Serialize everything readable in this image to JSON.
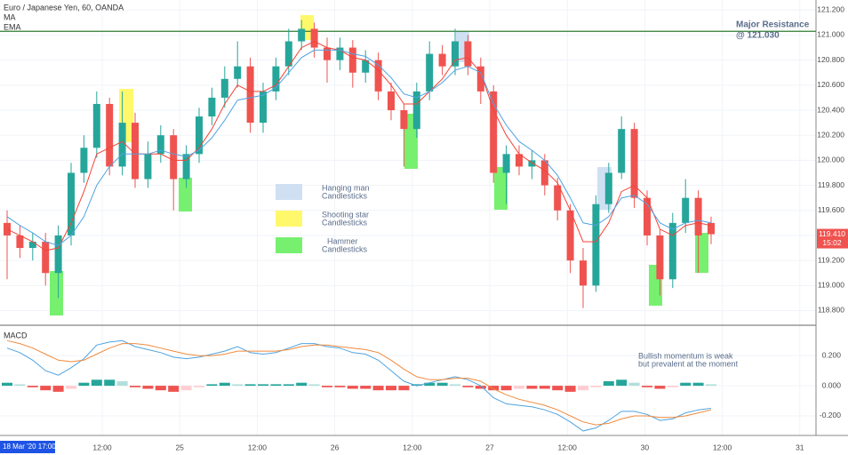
{
  "chart_data": {
    "type": "candlestick",
    "title": "Euro / Japanese Yen, 60, OANDA",
    "ylim": [
      118.69,
      121.28
    ],
    "yticks": [
      {
        "value": 121.2,
        "label": "121.200"
      },
      {
        "value": 121.0,
        "label": "121.000"
      },
      {
        "value": 120.8,
        "label": "120.800"
      },
      {
        "value": 120.6,
        "label": "120.600"
      },
      {
        "value": 120.4,
        "label": "120.400"
      },
      {
        "value": 120.2,
        "label": "120.200"
      },
      {
        "value": 120.0,
        "label": "120.000"
      },
      {
        "value": 119.8,
        "label": "119.800"
      },
      {
        "value": 119.6,
        "label": "119.600"
      },
      {
        "value": 119.4,
        "label": "119.400"
      },
      {
        "value": 119.2,
        "label": "119.200"
      },
      {
        "value": 119.0,
        "label": "119.000"
      },
      {
        "value": 118.8,
        "label": "118.800"
      }
    ],
    "grid": true,
    "up_color": "#26a69a",
    "down_color": "#ef5350",
    "open": [
      119.5,
      119.4,
      119.3,
      119.35,
      119.1,
      119.4,
      119.9,
      120.1,
      120.45,
      119.95,
      120.3,
      119.85,
      120.05,
      120.2,
      119.85,
      120.05,
      120.35,
      120.5,
      120.65,
      120.75,
      120.3,
      120.55,
      120.75,
      120.95,
      121.05,
      120.9,
      120.8,
      120.9,
      120.7,
      120.8,
      120.55,
      120.4,
      120.25,
      120.55,
      120.85,
      120.75,
      120.95,
      120.75,
      120.55,
      119.9,
      120.05,
      119.95,
      120.0,
      119.8,
      119.6,
      119.2,
      119.0,
      119.65,
      119.9,
      120.25,
      119.7,
      119.4,
      119.05,
      119.5,
      119.7,
      119.5
    ],
    "high": [
      119.6,
      119.48,
      119.42,
      119.42,
      119.48,
      119.98,
      120.2,
      120.55,
      120.5,
      120.55,
      120.38,
      120.15,
      120.28,
      120.25,
      120.12,
      120.42,
      120.58,
      120.75,
      120.95,
      120.82,
      120.62,
      120.82,
      121.05,
      121.12,
      121.1,
      120.98,
      120.98,
      120.96,
      120.88,
      120.86,
      120.62,
      120.45,
      120.62,
      120.95,
      120.92,
      121.05,
      121.0,
      120.82,
      120.6,
      120.12,
      120.12,
      120.08,
      120.05,
      119.86,
      119.65,
      119.3,
      119.72,
      119.98,
      120.35,
      120.3,
      119.76,
      119.45,
      119.58,
      119.85,
      119.76,
      119.55
    ],
    "low": [
      119.05,
      119.22,
      119.2,
      119.0,
      118.9,
      119.32,
      119.82,
      120.02,
      119.88,
      119.88,
      119.78,
      119.78,
      119.98,
      119.6,
      119.78,
      119.98,
      120.28,
      120.42,
      120.58,
      120.22,
      120.22,
      120.48,
      120.68,
      120.88,
      120.82,
      120.62,
      120.72,
      120.58,
      120.62,
      120.48,
      120.32,
      119.95,
      120.18,
      120.48,
      120.68,
      120.68,
      120.68,
      120.45,
      119.82,
      119.65,
      119.88,
      119.85,
      119.72,
      119.52,
      119.1,
      118.82,
      118.95,
      119.58,
      119.85,
      119.62,
      119.32,
      118.92,
      118.98,
      119.42,
      119.1,
      119.33
    ],
    "close": [
      119.4,
      119.3,
      119.35,
      119.1,
      119.4,
      119.9,
      120.1,
      120.45,
      119.95,
      120.3,
      119.85,
      120.05,
      120.2,
      119.85,
      120.05,
      120.35,
      120.5,
      120.65,
      120.75,
      120.3,
      120.55,
      120.75,
      120.95,
      121.05,
      120.9,
      120.8,
      120.9,
      120.7,
      120.8,
      120.55,
      120.4,
      120.25,
      120.55,
      120.85,
      120.75,
      120.95,
      120.75,
      120.55,
      119.9,
      120.05,
      119.95,
      120.0,
      119.8,
      119.6,
      119.2,
      119.0,
      119.65,
      119.9,
      120.25,
      119.7,
      119.4,
      119.05,
      119.5,
      119.7,
      119.4,
      119.41
    ],
    "series": [
      {
        "name": "MA",
        "color": "#f44336",
        "values": [
          119.45,
          119.4,
          119.35,
          119.28,
          119.3,
          119.5,
          119.75,
          120.05,
          120.1,
          120.15,
          120.05,
          120.05,
          120.05,
          120.0,
          120.0,
          120.1,
          120.25,
          120.45,
          120.6,
          120.55,
          120.55,
          120.6,
          120.75,
          120.9,
          120.95,
          120.9,
          120.88,
          120.82,
          120.8,
          120.72,
          120.6,
          120.45,
          120.45,
          120.55,
          120.65,
          120.8,
          120.82,
          120.7,
          120.4,
          120.2,
          120.05,
          119.98,
          119.92,
          119.82,
          119.6,
          119.35,
          119.35,
          119.5,
          119.75,
          119.8,
          119.7,
          119.45,
          119.4,
          119.48,
          119.5,
          119.48
        ]
      },
      {
        "name": "EMA",
        "color": "#4fa3e0",
        "values": [
          119.55,
          119.48,
          119.42,
          119.35,
          119.32,
          119.4,
          119.55,
          119.8,
          119.95,
          120.05,
          120.05,
          120.05,
          120.08,
          120.05,
          120.03,
          120.08,
          120.18,
          120.32,
          120.48,
          120.5,
          120.52,
          120.58,
          120.7,
          120.82,
          120.88,
          120.88,
          120.88,
          120.85,
          120.83,
          120.76,
          120.66,
          120.53,
          120.5,
          120.55,
          120.62,
          120.72,
          120.75,
          120.7,
          120.45,
          120.28,
          120.15,
          120.08,
          120.0,
          119.88,
          119.7,
          119.5,
          119.48,
          119.55,
          119.7,
          119.72,
          119.65,
          119.5,
          119.45,
          119.5,
          119.52,
          119.5
        ]
      }
    ],
    "resistance": {
      "value": 121.03,
      "color": "#2e7d32",
      "lines": [
        "Major Resistance",
        "@ 121.030"
      ]
    },
    "last_price": {
      "value": 119.41,
      "label": "119.410"
    },
    "countdown": "15:02",
    "legend": [
      {
        "lines": [
          "Hanging man",
          "Candlesticks"
        ],
        "color": "#cfe0f3"
      },
      {
        "lines": [
          "Shooting star",
          "Candlesticks"
        ],
        "color": "#fff86b"
      },
      {
        "lines": [
          "Hammer",
          "Candlesticks"
        ],
        "color": "#77f070"
      }
    ],
    "x_labels": [
      "12:00",
      "25",
      "12:00",
      "26",
      "12:00",
      "27",
      "12:00",
      "30",
      "12:00",
      "31"
    ],
    "cursor_label": "18 Mar '20  17:00",
    "macd": {
      "title": "MACD",
      "ylim": [
        -0.33,
        0.39
      ],
      "yticks": [
        {
          "value": 0.2,
          "label": "0.200"
        },
        {
          "value": 0,
          "label": "0.000"
        },
        {
          "value": -0.2,
          "label": "-0.200"
        }
      ],
      "annotation": [
        "Bullish momentum is weak",
        "but prevalent at the moment"
      ],
      "series": [
        {
          "color": "#4fa3e0",
          "values": [
            0.25,
            0.22,
            0.17,
            0.1,
            0.07,
            0.12,
            0.18,
            0.27,
            0.29,
            0.3,
            0.26,
            0.24,
            0.22,
            0.19,
            0.18,
            0.19,
            0.21,
            0.23,
            0.26,
            0.22,
            0.21,
            0.22,
            0.25,
            0.28,
            0.28,
            0.26,
            0.25,
            0.22,
            0.21,
            0.17,
            0.1,
            0.03,
            0.0,
            0.02,
            0.04,
            0.06,
            0.04,
            0.0,
            -0.08,
            -0.12,
            -0.13,
            -0.14,
            -0.16,
            -0.19,
            -0.24,
            -0.3,
            -0.28,
            -0.23,
            -0.17,
            -0.17,
            -0.19,
            -0.23,
            -0.22,
            -0.18,
            -0.16,
            -0.15
          ]
        },
        {
          "color": "#f08a3c",
          "values": [
            0.3,
            0.28,
            0.25,
            0.21,
            0.17,
            0.16,
            0.17,
            0.21,
            0.25,
            0.28,
            0.28,
            0.27,
            0.25,
            0.23,
            0.21,
            0.2,
            0.2,
            0.21,
            0.23,
            0.23,
            0.23,
            0.23,
            0.24,
            0.26,
            0.27,
            0.27,
            0.26,
            0.25,
            0.24,
            0.22,
            0.17,
            0.11,
            0.06,
            0.04,
            0.04,
            0.05,
            0.05,
            0.03,
            -0.02,
            -0.06,
            -0.09,
            -0.11,
            -0.13,
            -0.16,
            -0.2,
            -0.24,
            -0.26,
            -0.25,
            -0.22,
            -0.2,
            -0.2,
            -0.21,
            -0.21,
            -0.2,
            -0.18,
            -0.16
          ]
        }
      ],
      "histogram": {
        "colors": [
          "#26a69a",
          "#b2dfdb",
          "#ef5350",
          "#ffcdd2"
        ],
        "values": [
          0.02,
          0.01,
          -0.01,
          -0.03,
          -0.04,
          -0.02,
          0.02,
          0.04,
          0.04,
          0.03,
          -0.01,
          -0.02,
          -0.03,
          -0.04,
          -0.03,
          -0.01,
          0.01,
          0.02,
          0.01,
          0.01,
          0.01,
          0.01,
          0.01,
          0.02,
          0.01,
          -0.01,
          -0.01,
          -0.02,
          -0.02,
          -0.03,
          -0.03,
          -0.03,
          0.01,
          0.02,
          0.02,
          0.01,
          -0.01,
          -0.02,
          -0.03,
          -0.03,
          -0.02,
          -0.02,
          -0.02,
          -0.03,
          -0.04,
          -0.03,
          -0.01,
          0.03,
          0.04,
          0.02,
          -0.01,
          -0.02,
          -0.01,
          0.02,
          0.02,
          0.01
        ]
      }
    }
  }
}
